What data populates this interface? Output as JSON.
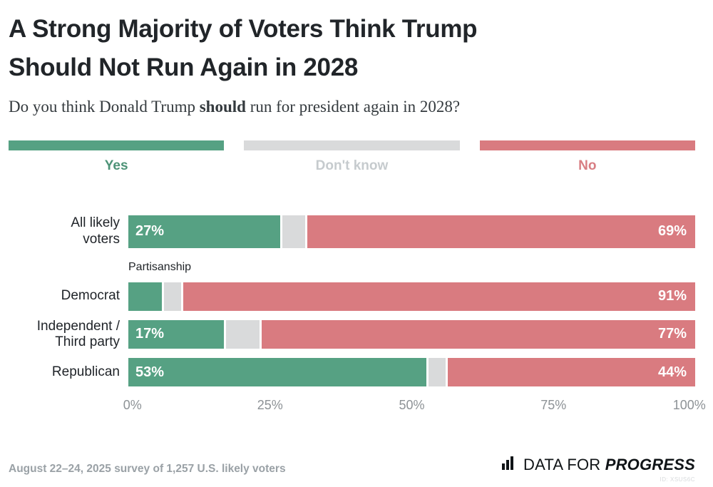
{
  "header": {
    "title_line1": "A Strong Majority of Voters Think Trump",
    "title_line2": "Should Not Run Again in 2028",
    "subtitle_prefix": "Do you think Donald Trump ",
    "subtitle_bold": "should",
    "subtitle_suffix": " run for president again in 2028?"
  },
  "legend": {
    "items": [
      {
        "label": "Yes",
        "color": "#56a183",
        "text_color": "#4d9377"
      },
      {
        "label": "Don't know",
        "color": "#d9dadb",
        "text_color": "#c6cbce"
      },
      {
        "label": "No",
        "color": "#d97b80",
        "text_color": "#d87e83"
      }
    ]
  },
  "chart_data": {
    "type": "bar",
    "orientation": "horizontal",
    "stacked": true,
    "grid": false,
    "legend_position": "top",
    "title": "A Strong Majority of Voters Think Trump Should Not Run Again in 2028",
    "question": "Do you think Donald Trump should run for president again in 2028?",
    "categories": [
      "All likely voters",
      "Democrat",
      "Independent / Third party",
      "Republican"
    ],
    "category_label_lines": [
      [
        "All likely",
        "voters"
      ],
      [
        "Democrat"
      ],
      [
        "Independent /",
        "Third party"
      ],
      [
        "Republican"
      ]
    ],
    "series": [
      {
        "name": "Yes",
        "key": "yes",
        "color": "#56a183",
        "values": [
          27,
          6,
          17,
          53
        ]
      },
      {
        "name": "Don't know",
        "key": "dont-know",
        "color": "#d9dadb",
        "values": [
          4,
          3,
          6,
          3
        ]
      },
      {
        "name": "No",
        "key": "no",
        "color": "#d97b80",
        "values": [
          69,
          91,
          77,
          44
        ]
      }
    ],
    "data_labels": {
      "yes": [
        "27%",
        "",
        "17%",
        "53%"
      ],
      "no": [
        "69%",
        "91%",
        "77%",
        "44%"
      ]
    },
    "section_label": "Partisanship",
    "section_before_index": 1,
    "x_ticks": [
      "0%",
      "25%",
      "50%",
      "75%",
      "100%"
    ],
    "xlim": [
      0,
      100
    ]
  },
  "footer": {
    "source": "August 22–24, 2025 survey of 1,257 U.S. likely voters",
    "logo_text_regular": "DATA FOR ",
    "logo_text_bold": "PROGRESS",
    "chart_id": "ID: XSUS6C"
  }
}
